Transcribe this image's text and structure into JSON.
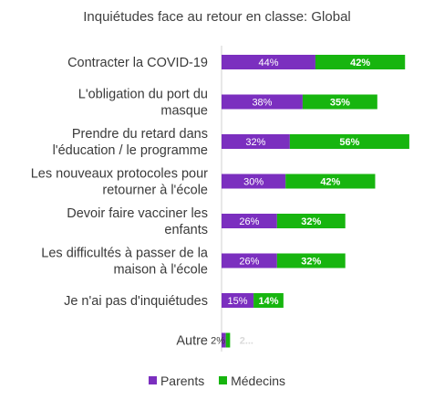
{
  "chart_data": {
    "type": "bar",
    "orientation": "horizontal",
    "stacked": true,
    "title": "Inquiétudes face au retour en classe: Global",
    "categories": [
      [
        "Contracter la COVID-19"
      ],
      [
        "L'obligation du port du",
        "masque"
      ],
      [
        "Prendre du retard dans",
        "l'éducation / le programme"
      ],
      [
        "Les nouveaux protocoles pour",
        "retourner à l'école"
      ],
      [
        "Devoir faire vacciner les",
        "enfants"
      ],
      [
        "Les difficultés à passer de la",
        "maison à l'école"
      ],
      [
        "Je n'ai pas d'inquiétudes"
      ],
      [
        "Autre"
      ]
    ],
    "series": [
      {
        "name": "Parents",
        "color": "#7b2fbf",
        "values": [
          44,
          38,
          32,
          30,
          26,
          26,
          15,
          2
        ],
        "labels": [
          "44%",
          "38%",
          "32%",
          "30%",
          "26%",
          "26%",
          "15%",
          "2%"
        ]
      },
      {
        "name": "Médecins",
        "color": "#17b50f",
        "values": [
          42,
          35,
          56,
          42,
          32,
          32,
          14,
          2
        ],
        "labels": [
          "42%",
          "35%",
          "56%",
          "42%",
          "32%",
          "32%",
          "14%",
          "2..."
        ]
      }
    ],
    "grid": false,
    "legend_position": "bottom"
  }
}
